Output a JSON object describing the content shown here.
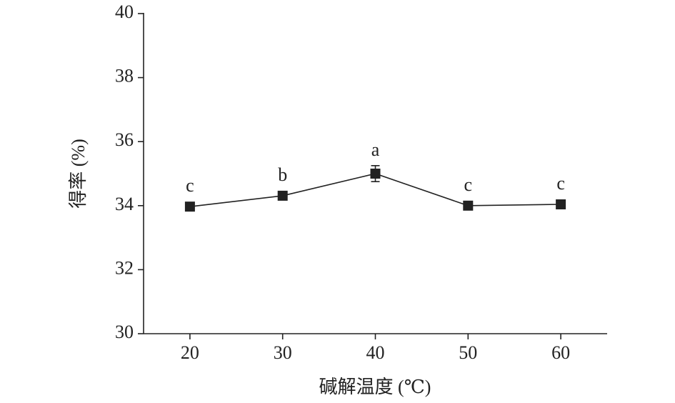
{
  "chart_data": {
    "type": "line",
    "x_label": "碱解温度 (℃)",
    "y_label": "得率 (%)",
    "x": [
      20,
      30,
      40,
      50,
      60
    ],
    "series": [
      {
        "color": "#222222",
        "values": [
          33.97,
          34.31,
          35.0,
          34.0,
          34.04
        ],
        "errors": [
          0.05,
          0.06,
          0.25,
          0.06,
          0.05
        ],
        "annotations": [
          "c",
          "b",
          "a",
          "c",
          "c"
        ]
      }
    ],
    "xlim": [
      15,
      65
    ],
    "xticks": [
      20,
      30,
      40,
      50,
      60
    ],
    "ylim": [
      30,
      40
    ],
    "yticks": [
      30,
      32,
      34,
      36,
      38,
      40
    ]
  }
}
